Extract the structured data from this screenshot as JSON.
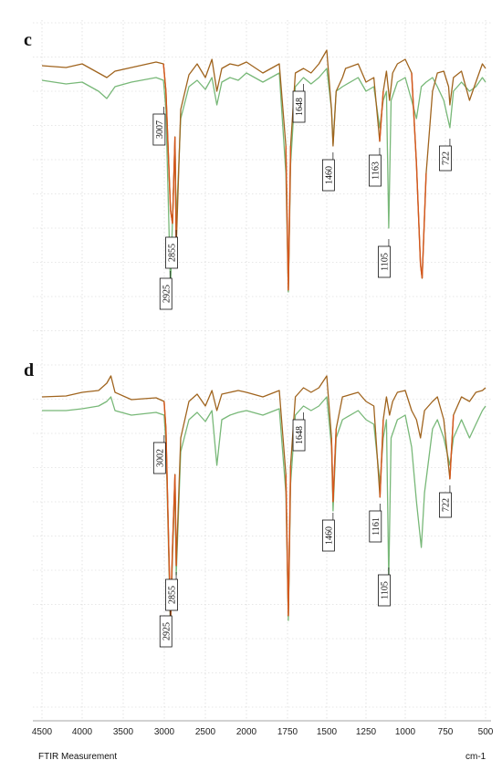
{
  "chart_data": [
    {
      "type": "line",
      "panel": "c",
      "xlim": [
        4500,
        500
      ],
      "x_reversed": true,
      "grid": true,
      "xticks": [
        4500,
        4000,
        3500,
        3000,
        2500,
        2000,
        1750,
        1500,
        1250,
        1000,
        750,
        500
      ],
      "xlabel": "FTIR Measurement",
      "xunit": "cm-1",
      "colors": {
        "brown": "#a0641e",
        "orange": "#d4571c",
        "green": "#78b878"
      },
      "annotations": [
        {
          "label": "3007",
          "x": 3007,
          "series": "brown"
        },
        {
          "label": "2925",
          "x": 2925,
          "series": "green"
        },
        {
          "label": "2855",
          "x": 2855,
          "series": "green"
        },
        {
          "label": "1648",
          "x": 1648,
          "series": "brown"
        },
        {
          "label": "1460",
          "x": 1460,
          "series": "green"
        },
        {
          "label": "1163",
          "x": 1163,
          "series": "orange"
        },
        {
          "label": "1105",
          "x": 1105,
          "series": "green"
        },
        {
          "label": "722",
          "x": 722,
          "series": "green"
        }
      ]
    },
    {
      "type": "line",
      "panel": "d",
      "xlim": [
        4500,
        500
      ],
      "x_reversed": true,
      "grid": true,
      "xticks": [
        4500,
        4000,
        3500,
        3000,
        2500,
        2000,
        1750,
        1500,
        1250,
        1000,
        750,
        500
      ],
      "xlabel": "FTIR Measurement",
      "xunit": "cm-1",
      "colors": {
        "brown": "#a0641e",
        "orange": "#d4571c",
        "green": "#78b878"
      },
      "annotations": [
        {
          "label": "3002",
          "x": 3002,
          "series": "brown"
        },
        {
          "label": "2925",
          "x": 2925,
          "series": "green"
        },
        {
          "label": "2855",
          "x": 2855,
          "series": "green"
        },
        {
          "label": "1648",
          "x": 1648,
          "series": "brown"
        },
        {
          "label": "1460",
          "x": 1460,
          "series": "green"
        },
        {
          "label": "1161",
          "x": 1161,
          "series": "orange"
        },
        {
          "label": "1105",
          "x": 1105,
          "series": "green"
        },
        {
          "label": "722",
          "x": 722,
          "series": "green"
        }
      ]
    }
  ],
  "panels": {
    "c": {
      "letter": "c"
    },
    "d": {
      "letter": "d"
    }
  },
  "axis": {
    "ticks": [
      "4500",
      "4000",
      "3500",
      "3000",
      "2500",
      "2000",
      "1750",
      "1500",
      "1250",
      "1000",
      "750",
      "500"
    ],
    "xlabel": "FTIR Measurement",
    "unit": "cm-1"
  }
}
